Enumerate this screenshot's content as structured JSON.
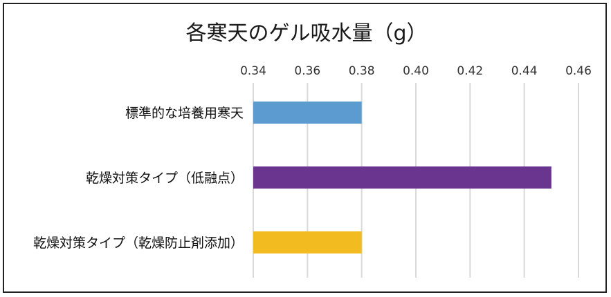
{
  "chart_data": {
    "type": "bar",
    "orientation": "horizontal",
    "title": "各寒天のゲル吸水量（g）",
    "xlabel": "",
    "ylabel": "",
    "xlim": [
      0.34,
      0.46
    ],
    "ticks": [
      "0.34",
      "0.36",
      "0.38",
      "0.40",
      "0.42",
      "0.44",
      "0.46"
    ],
    "tick_values": [
      0.34,
      0.36,
      0.38,
      0.4,
      0.42,
      0.44,
      0.46
    ],
    "categories": [
      "標準的な培養用寒天",
      "乾燥対策タイプ（低融点）",
      "乾燥対策タイプ（乾燥防止剤添加）"
    ],
    "values": [
      0.38,
      0.45,
      0.38
    ],
    "colors": [
      "#5b9bd0",
      "#6a358f",
      "#f2bb1f"
    ],
    "grid": true,
    "axis_position": "top",
    "legend": "none"
  }
}
